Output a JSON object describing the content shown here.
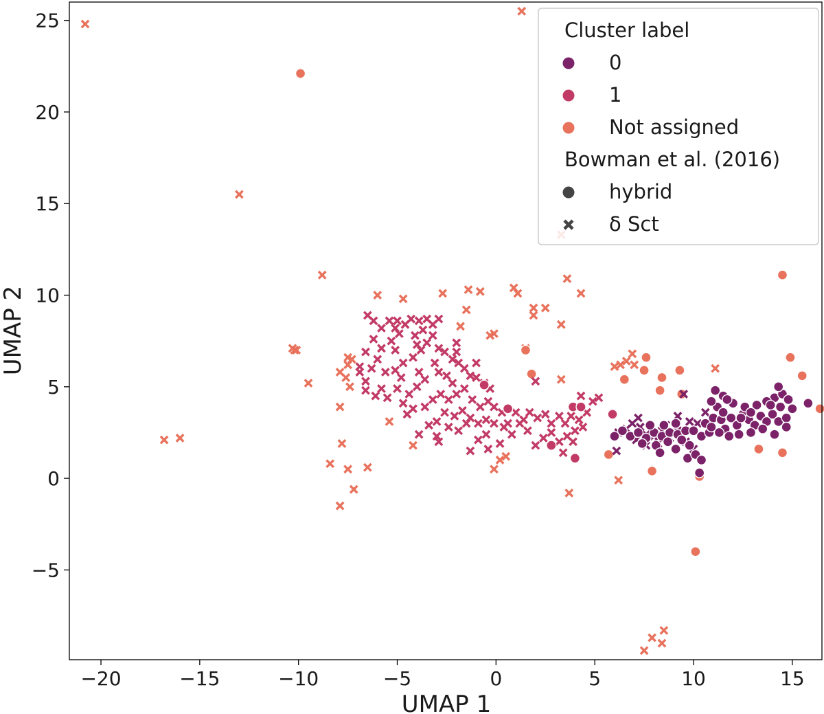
{
  "chart_data": {
    "type": "scatter",
    "title": "",
    "xlabel": "UMAP 1",
    "ylabel": "UMAP 2",
    "xlim": [
      -21.6,
      16.5
    ],
    "ylim": [
      -9.9,
      26.0
    ],
    "xticks": [
      -20,
      -15,
      -10,
      -5,
      0,
      5,
      10,
      15
    ],
    "yticks": [
      -5,
      0,
      5,
      10,
      15,
      20,
      25
    ],
    "xtick_labels": [
      "−20",
      "−15",
      "−10",
      "−5",
      "0",
      "5",
      "10",
      "15"
    ],
    "ytick_labels": [
      "−5",
      "0",
      "5",
      "10",
      "15",
      "20",
      "25"
    ],
    "grid": false,
    "legend": {
      "placement": "top-right",
      "hue_title": "Cluster label",
      "hue_items": [
        {
          "label": "0",
          "color": "#7b2269"
        },
        {
          "label": "1",
          "color": "#c23a66"
        },
        {
          "label": "Not assigned",
          "color": "#e8725c"
        }
      ],
      "style_title": "Bowman et al. (2016)",
      "style_items": [
        {
          "label": "hybrid",
          "marker": "circle"
        },
        {
          "label": "δ Sct",
          "marker": "x"
        }
      ]
    },
    "series": [
      {
        "name": "Not assigned / δ Sct",
        "cluster": "Not assigned",
        "marker": "x",
        "color": "#e8725c",
        "points": [
          [
            -20.8,
            24.8
          ],
          [
            1.3,
            25.5
          ],
          [
            -13.0,
            15.5
          ],
          [
            3.3,
            13.3
          ],
          [
            -8.8,
            11.1
          ],
          [
            -6.0,
            10.0
          ],
          [
            -4.7,
            9.8
          ],
          [
            -2.7,
            10.1
          ],
          [
            -1.4,
            10.3
          ],
          [
            -0.8,
            10.2
          ],
          [
            0.9,
            10.4
          ],
          [
            1.1,
            10.1
          ],
          [
            3.6,
            10.9
          ],
          [
            4.3,
            10.1
          ],
          [
            -1.5,
            9.2
          ],
          [
            1.9,
            9.3
          ],
          [
            2.5,
            9.3
          ],
          [
            1.9,
            8.9
          ],
          [
            -1.8,
            8.3
          ],
          [
            3.3,
            8.4
          ],
          [
            -0.3,
            7.8
          ],
          [
            -0.1,
            7.9
          ],
          [
            -10.3,
            7.1
          ],
          [
            -10.2,
            7.0
          ],
          [
            -10.1,
            7.0
          ],
          [
            1.5,
            7.1
          ],
          [
            -7.5,
            6.6
          ],
          [
            -7.3,
            6.5
          ],
          [
            -7.5,
            6.2
          ],
          [
            -7.9,
            5.8
          ],
          [
            -7.6,
            5.5
          ],
          [
            -7.4,
            5.0
          ],
          [
            -9.5,
            5.2
          ],
          [
            3.3,
            5.4
          ],
          [
            -5.4,
            3.1
          ],
          [
            -4.2,
            1.8
          ],
          [
            -7.9,
            3.9
          ],
          [
            -7.8,
            1.9
          ],
          [
            -8.4,
            0.8
          ],
          [
            -7.5,
            0.5
          ],
          [
            -6.5,
            0.6
          ],
          [
            -7.2,
            -0.6
          ],
          [
            -7.9,
            -1.5
          ],
          [
            -16.8,
            2.1
          ],
          [
            -16.0,
            2.2
          ],
          [
            -0.1,
            0.5
          ],
          [
            0.5,
            1.2
          ],
          [
            0.2,
            1.0
          ],
          [
            3.7,
            -0.8
          ],
          [
            6.0,
            6.1
          ],
          [
            6.3,
            6.2
          ],
          [
            6.9,
            6.8
          ],
          [
            6.6,
            6.4
          ],
          [
            7.0,
            6.2
          ],
          [
            6.2,
            -0.1
          ],
          [
            11.1,
            6.0
          ],
          [
            7.5,
            -9.4
          ],
          [
            7.9,
            -8.7
          ],
          [
            8.4,
            -9.0
          ],
          [
            8.5,
            -8.3
          ]
        ]
      },
      {
        "name": "Not assigned / hybrid",
        "cluster": "Not assigned",
        "marker": "circle",
        "color": "#e8725c",
        "points": [
          [
            -9.9,
            22.1
          ],
          [
            14.5,
            11.1
          ],
          [
            1.5,
            7.0
          ],
          [
            1.8,
            5.7
          ],
          [
            7.6,
            6.6
          ],
          [
            7.5,
            5.9
          ],
          [
            8.4,
            5.5
          ],
          [
            9.3,
            5.9
          ],
          [
            8.3,
            4.8
          ],
          [
            9.4,
            4.6
          ],
          [
            6.5,
            5.4
          ],
          [
            5.7,
            1.3
          ],
          [
            7.9,
            0.4
          ],
          [
            10.3,
            0.1
          ],
          [
            10.1,
            -4.0
          ],
          [
            13.3,
            1.6
          ],
          [
            14.5,
            1.4
          ],
          [
            14.9,
            6.6
          ],
          [
            15.5,
            5.6
          ],
          [
            16.4,
            3.8
          ]
        ]
      },
      {
        "name": "1 / δ Sct",
        "cluster": "1",
        "marker": "x",
        "color": "#c23a66",
        "points": [
          [
            -6.5,
            8.9
          ],
          [
            -6.2,
            8.6
          ],
          [
            -5.8,
            8.2
          ],
          [
            -5.4,
            8.6
          ],
          [
            -5.0,
            8.6
          ],
          [
            -4.6,
            8.4
          ],
          [
            -4.3,
            8.7
          ],
          [
            -3.9,
            8.6
          ],
          [
            -3.5,
            8.7
          ],
          [
            -3.2,
            8.4
          ],
          [
            -2.9,
            8.7
          ],
          [
            -3.7,
            8.1
          ],
          [
            -4.1,
            7.8
          ],
          [
            -4.9,
            7.9
          ],
          [
            -5.3,
            7.5
          ],
          [
            -5.8,
            7.1
          ],
          [
            -6.2,
            7.6
          ],
          [
            -6.6,
            6.9
          ],
          [
            -6.0,
            6.5
          ],
          [
            -6.3,
            6.0
          ],
          [
            -6.9,
            5.8
          ],
          [
            -6.6,
            5.3
          ],
          [
            -5.8,
            4.9
          ],
          [
            -6.1,
            4.5
          ],
          [
            -5.5,
            4.4
          ],
          [
            -5.0,
            4.9
          ],
          [
            -4.8,
            5.5
          ],
          [
            -5.1,
            5.9
          ],
          [
            -4.7,
            6.3
          ],
          [
            -4.2,
            6.6
          ],
          [
            -3.8,
            7.0
          ],
          [
            -3.5,
            7.4
          ],
          [
            -3.2,
            7.8
          ],
          [
            -2.9,
            7.1
          ],
          [
            -2.6,
            6.9
          ],
          [
            -2.2,
            6.5
          ],
          [
            -1.9,
            6.3
          ],
          [
            -1.6,
            6.0
          ],
          [
            -1.3,
            5.6
          ],
          [
            -1.0,
            5.5
          ],
          [
            -0.6,
            5.2
          ],
          [
            -0.3,
            4.9
          ],
          [
            -3.1,
            6.3
          ],
          [
            -2.9,
            5.8
          ],
          [
            -2.5,
            5.6
          ],
          [
            -2.2,
            5.2
          ],
          [
            -3.6,
            5.4
          ],
          [
            -4.0,
            5.0
          ],
          [
            -4.4,
            4.6
          ],
          [
            -4.7,
            4.1
          ],
          [
            -4.2,
            3.8
          ],
          [
            -3.6,
            3.9
          ],
          [
            -3.2,
            4.3
          ],
          [
            -2.8,
            4.6
          ],
          [
            -2.4,
            4.3
          ],
          [
            -2.0,
            4.6
          ],
          [
            -1.6,
            4.9
          ],
          [
            -1.2,
            4.3
          ],
          [
            -0.8,
            3.9
          ],
          [
            -0.4,
            4.2
          ],
          [
            -2.6,
            3.6
          ],
          [
            -2.1,
            3.4
          ],
          [
            -1.7,
            3.7
          ],
          [
            -1.3,
            3.3
          ],
          [
            -0.9,
            3.0
          ],
          [
            -0.5,
            3.2
          ],
          [
            -3.0,
            3.1
          ],
          [
            -3.4,
            2.9
          ],
          [
            -2.4,
            2.8
          ],
          [
            -1.9,
            2.6
          ],
          [
            -3.9,
            2.4
          ],
          [
            -3.0,
            2.3
          ],
          [
            -0.5,
            2.4
          ],
          [
            -0.1,
            3.0
          ],
          [
            0.3,
            3.6
          ],
          [
            0.6,
            3.0
          ],
          [
            1.0,
            3.6
          ],
          [
            1.4,
            3.2
          ],
          [
            1.7,
            3.6
          ],
          [
            2.1,
            3.3
          ],
          [
            2.5,
            3.5
          ],
          [
            2.8,
            3.0
          ],
          [
            3.2,
            3.4
          ],
          [
            3.5,
            3.0
          ],
          [
            3.8,
            3.4
          ],
          [
            4.2,
            3.2
          ],
          [
            4.6,
            3.6
          ],
          [
            4.9,
            4.2
          ],
          [
            5.2,
            4.4
          ],
          [
            4.4,
            2.8
          ],
          [
            4.0,
            2.6
          ],
          [
            3.6,
            2.3
          ],
          [
            3.2,
            2.0
          ],
          [
            2.8,
            2.5
          ],
          [
            2.4,
            2.2
          ],
          [
            2.0,
            1.8
          ],
          [
            1.6,
            2.6
          ],
          [
            1.2,
            3.0
          ],
          [
            0.8,
            2.4
          ],
          [
            0.4,
            2.8
          ],
          [
            -0.4,
            1.6
          ],
          [
            0.2,
            1.9
          ],
          [
            -0.9,
            2.1
          ],
          [
            -1.3,
            1.5
          ],
          [
            3.4,
            1.4
          ],
          [
            2.0,
            5.3
          ],
          [
            4.3,
            4.5
          ],
          [
            3.9,
            2.0
          ],
          [
            -1.5,
            3.0
          ],
          [
            -4.5,
            3.5
          ],
          [
            -5.1,
            7.0
          ],
          [
            -4.0,
            7.3
          ],
          [
            -2.0,
            7.4
          ],
          [
            -5.6,
            5.8
          ],
          [
            -6.9,
            6.1
          ],
          [
            -6.6,
            4.8
          ],
          [
            -1.0,
            6.3
          ],
          [
            -2.9,
            2.0
          ],
          [
            -3.9,
            5.8
          ],
          [
            -0.1,
            3.9
          ],
          [
            -2.0,
            6.9
          ],
          [
            -5.1,
            8.2
          ]
        ]
      },
      {
        "name": "1 / hybrid",
        "cluster": "1",
        "marker": "circle",
        "color": "#c23a66",
        "points": [
          [
            -0.6,
            5.1
          ],
          [
            0.6,
            3.8
          ],
          [
            2.8,
            1.8
          ],
          [
            4.0,
            1.1
          ],
          [
            3.9,
            3.9
          ],
          [
            5.9,
            3.5
          ],
          [
            4.3,
            3.9
          ]
        ]
      },
      {
        "name": "0 / δ Sct",
        "cluster": "0",
        "marker": "x",
        "color": "#7b2269",
        "points": [
          [
            6.2,
            2.5
          ],
          [
            6.1,
            1.5
          ],
          [
            6.6,
            2.7
          ],
          [
            6.9,
            3.0
          ],
          [
            7.3,
            2.8
          ],
          [
            7.6,
            2.4
          ],
          [
            8.0,
            2.3
          ],
          [
            8.4,
            2.6
          ],
          [
            8.8,
            2.2
          ],
          [
            7.1,
            2.1
          ],
          [
            7.6,
            1.8
          ],
          [
            8.2,
            1.9
          ],
          [
            8.6,
            2.9
          ],
          [
            9.2,
            2.6
          ],
          [
            9.6,
            2.0
          ],
          [
            10.0,
            1.6
          ],
          [
            7.2,
            3.3
          ],
          [
            9.2,
            3.4
          ],
          [
            9.8,
            3.1
          ],
          [
            10.6,
            3.6
          ],
          [
            10.2,
            3.0
          ],
          [
            9.5,
            4.6
          ]
        ]
      },
      {
        "name": "0 / hybrid",
        "cluster": "0",
        "marker": "circle",
        "color": "#7b2269",
        "points": [
          [
            6.0,
            2.3
          ],
          [
            6.4,
            2.6
          ],
          [
            6.8,
            2.3
          ],
          [
            7.2,
            2.5
          ],
          [
            7.6,
            2.2
          ],
          [
            8.0,
            2.5
          ],
          [
            8.4,
            2.3
          ],
          [
            8.8,
            2.5
          ],
          [
            9.2,
            2.4
          ],
          [
            9.6,
            2.6
          ],
          [
            7.8,
            2.9
          ],
          [
            8.5,
            2.9
          ],
          [
            9.1,
            3.0
          ],
          [
            7.4,
            1.9
          ],
          [
            8.1,
            1.8
          ],
          [
            8.7,
            2.0
          ],
          [
            9.4,
            2.1
          ],
          [
            8.3,
            1.4
          ],
          [
            9.1,
            1.6
          ],
          [
            9.8,
            1.8
          ],
          [
            10.0,
            2.6
          ],
          [
            9.7,
            1.1
          ],
          [
            10.1,
            1.3
          ],
          [
            10.4,
            1.0
          ],
          [
            10.3,
            0.3
          ],
          [
            10.4,
            2.3
          ],
          [
            10.8,
            2.5
          ],
          [
            10.6,
            3.0
          ],
          [
            11.0,
            3.3
          ],
          [
            11.2,
            3.9
          ],
          [
            11.4,
            3.2
          ],
          [
            11.6,
            2.7
          ],
          [
            11.9,
            3.3
          ],
          [
            12.2,
            2.9
          ],
          [
            12.5,
            3.5
          ],
          [
            12.8,
            3.2
          ],
          [
            13.1,
            2.9
          ],
          [
            13.4,
            3.4
          ],
          [
            13.7,
            3.1
          ],
          [
            14.0,
            3.5
          ],
          [
            14.3,
            3.1
          ],
          [
            14.7,
            3.3
          ],
          [
            15.0,
            3.8
          ],
          [
            14.4,
            3.9
          ],
          [
            14.1,
            4.4
          ],
          [
            14.5,
            4.6
          ],
          [
            14.8,
            4.3
          ],
          [
            14.3,
            5.0
          ],
          [
            13.7,
            4.2
          ],
          [
            13.2,
            4.0
          ],
          [
            12.6,
            3.9
          ],
          [
            12.0,
            4.1
          ],
          [
            11.5,
            4.5
          ],
          [
            11.1,
            4.8
          ],
          [
            11.7,
            4.3
          ],
          [
            10.9,
            4.2
          ],
          [
            12.3,
            2.4
          ],
          [
            12.9,
            2.5
          ],
          [
            13.5,
            2.7
          ],
          [
            11.3,
            2.5
          ],
          [
            11.8,
            2.3
          ],
          [
            10.9,
            2.8
          ],
          [
            14.1,
            2.4
          ],
          [
            14.7,
            2.8
          ],
          [
            15.8,
            4.1
          ],
          [
            12.9,
            3.6
          ],
          [
            11.5,
            3.6
          ],
          [
            13.9,
            4.0
          ],
          [
            12.4,
            3.3
          ]
        ]
      }
    ]
  }
}
